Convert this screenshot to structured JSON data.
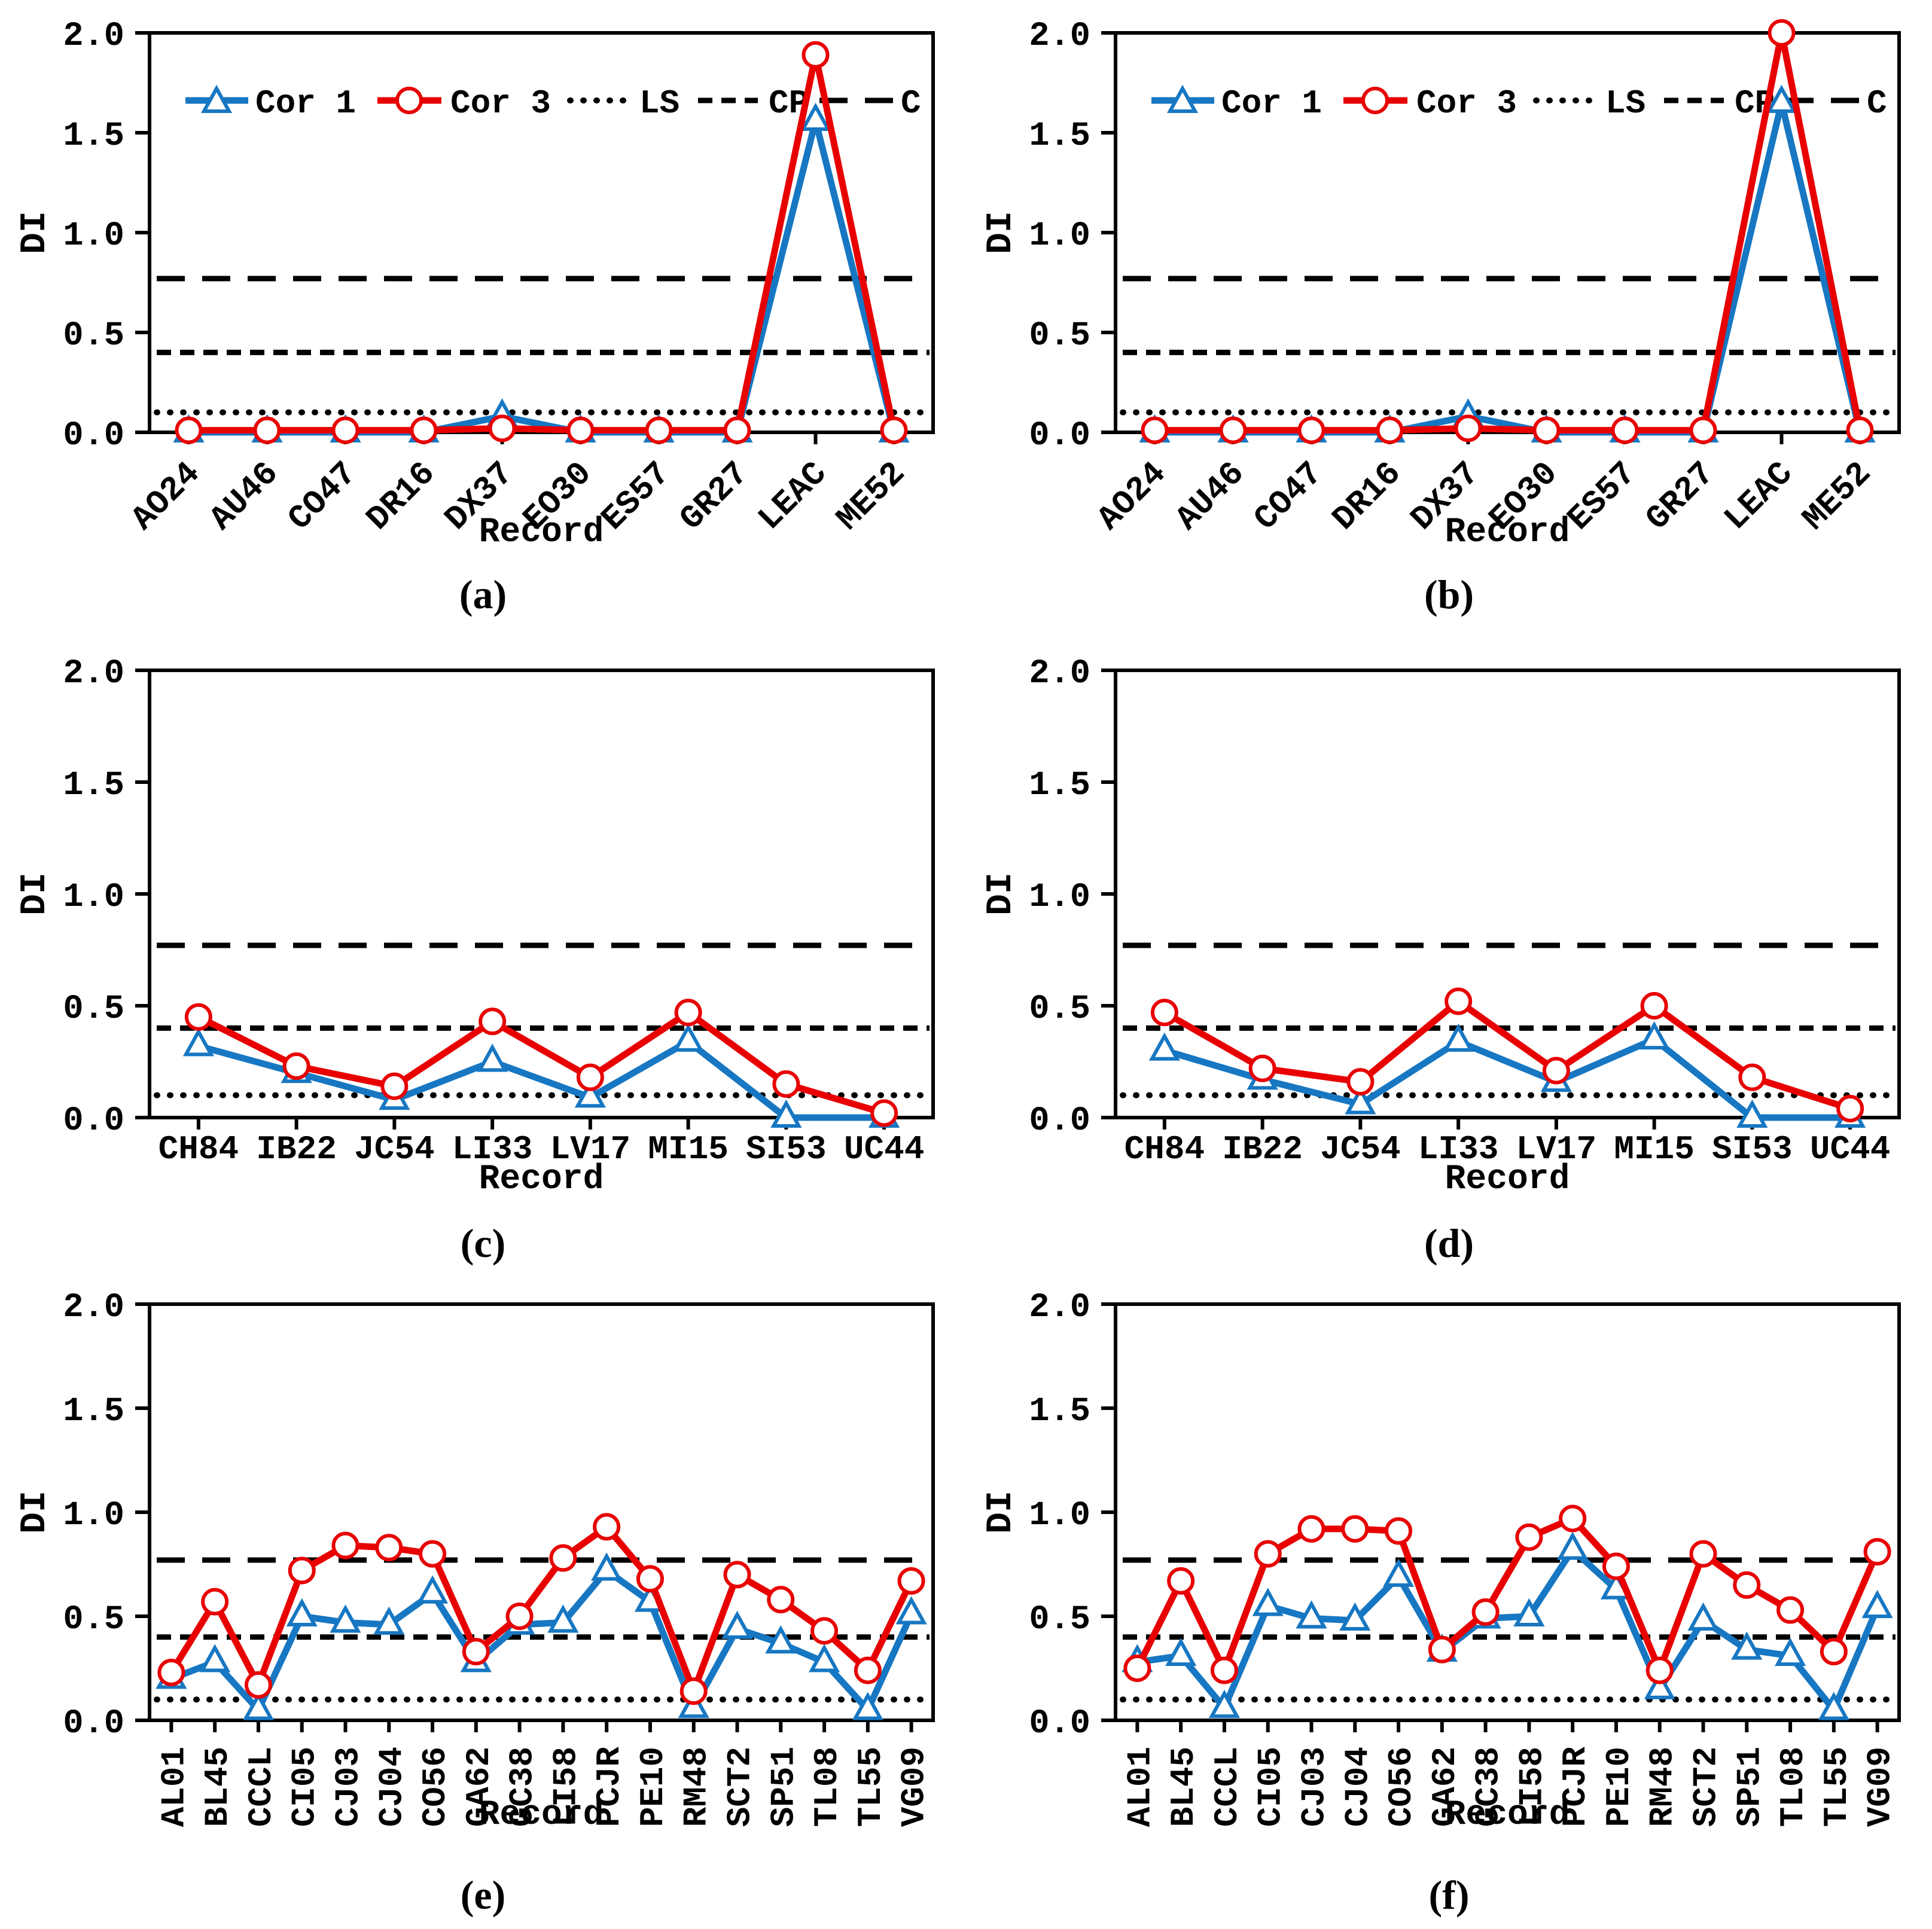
{
  "figure": {
    "ylabel": "DI",
    "xlabel": "Record",
    "background_color": "#ffffff",
    "axis_color": "#000000",
    "cor1_color": "#1777C2",
    "cor3_color": "#E80000",
    "ref_color": "#000000",
    "legend": {
      "cor1": "Cor 1",
      "cor3": "Cor 3",
      "ls": "LS",
      "cp": "CP",
      "c": "C"
    },
    "yticks": [
      "0.0",
      "0.5",
      "1.0",
      "1.5",
      "2.0"
    ],
    "ylim": [
      0,
      2
    ],
    "ref_lines": [
      {
        "name": "LS",
        "value": 0.1,
        "style": "dotted"
      },
      {
        "name": "CP",
        "value": 0.4,
        "style": "dashed"
      },
      {
        "name": "C",
        "value": 0.77,
        "style": "longdash"
      }
    ]
  },
  "chart_data": [
    {
      "id": "a",
      "caption": "(a)",
      "type": "line",
      "legend": true,
      "xtick_rotation": 45,
      "xlabel": "Record",
      "ylabel": "DI",
      "ylim": [
        0,
        2
      ],
      "grid": false,
      "categories": [
        "AO24",
        "AU46",
        "CO47",
        "DR16",
        "DX37",
        "EO30",
        "ES57",
        "GR27",
        "LEAC",
        "ME52"
      ],
      "series": [
        {
          "name": "Cor 1",
          "marker": "triangle",
          "values": [
            0.0,
            0.0,
            0.0,
            0.0,
            0.08,
            0.0,
            0.0,
            0.0,
            1.56,
            0.0
          ]
        },
        {
          "name": "Cor 3",
          "marker": "circle",
          "values": [
            0.01,
            0.01,
            0.01,
            0.01,
            0.02,
            0.01,
            0.01,
            0.01,
            1.89,
            0.01
          ]
        }
      ]
    },
    {
      "id": "b",
      "caption": "(b)",
      "type": "line",
      "legend": true,
      "xtick_rotation": 45,
      "xlabel": "Record",
      "ylabel": "DI",
      "ylim": [
        0,
        2
      ],
      "grid": false,
      "categories": [
        "AO24",
        "AU46",
        "CO47",
        "DR16",
        "DX37",
        "EO30",
        "ES57",
        "GR27",
        "LEAC",
        "ME52"
      ],
      "series": [
        {
          "name": "Cor 1",
          "marker": "triangle",
          "values": [
            0.0,
            0.0,
            0.0,
            0.0,
            0.08,
            0.0,
            0.0,
            0.0,
            1.65,
            0.0
          ]
        },
        {
          "name": "Cor 3",
          "marker": "circle",
          "values": [
            0.01,
            0.01,
            0.01,
            0.01,
            0.02,
            0.01,
            0.01,
            0.01,
            2.0,
            0.01
          ]
        }
      ]
    },
    {
      "id": "c",
      "caption": "(c)",
      "type": "line",
      "legend": false,
      "xtick_rotation": 0,
      "xlabel": "Record",
      "ylabel": "DI",
      "ylim": [
        0,
        2
      ],
      "grid": false,
      "categories": [
        "CH84",
        "IB22",
        "JC54",
        "LI33",
        "LV17",
        "MI15",
        "SI53",
        "UC44"
      ],
      "series": [
        {
          "name": "Cor 1",
          "marker": "triangle",
          "values": [
            0.32,
            0.2,
            0.08,
            0.25,
            0.09,
            0.34,
            0.0,
            0.0
          ]
        },
        {
          "name": "Cor 3",
          "marker": "circle",
          "values": [
            0.45,
            0.23,
            0.14,
            0.43,
            0.18,
            0.47,
            0.15,
            0.02
          ]
        }
      ]
    },
    {
      "id": "d",
      "caption": "(d)",
      "type": "line",
      "legend": false,
      "xtick_rotation": 0,
      "xlabel": "Record",
      "ylabel": "DI",
      "ylim": [
        0,
        2
      ],
      "grid": false,
      "categories": [
        "CH84",
        "IB22",
        "JC54",
        "LI33",
        "LV17",
        "MI15",
        "SI53",
        "UC44"
      ],
      "series": [
        {
          "name": "Cor 1",
          "marker": "triangle",
          "values": [
            0.3,
            0.17,
            0.06,
            0.34,
            0.16,
            0.35,
            0.0,
            0.0
          ]
        },
        {
          "name": "Cor 3",
          "marker": "circle",
          "values": [
            0.47,
            0.22,
            0.16,
            0.52,
            0.21,
            0.5,
            0.18,
            0.04
          ]
        }
      ]
    },
    {
      "id": "e",
      "caption": "(e)",
      "type": "line",
      "legend": false,
      "xtick_rotation": 90,
      "xlabel": "Record",
      "ylabel": "DI",
      "ylim": [
        0,
        2
      ],
      "grid": false,
      "categories": [
        "AL01",
        "BL45",
        "CCCL",
        "CI05",
        "CJ03",
        "CJ04",
        "CO56",
        "GA62",
        "GC38",
        "LI58",
        "PCJR",
        "PE10",
        "RM48",
        "SCT2",
        "SP51",
        "TL08",
        "TL55",
        "VG09"
      ],
      "series": [
        {
          "name": "Cor 1",
          "marker": "triangle",
          "values": [
            0.2,
            0.28,
            0.05,
            0.5,
            0.47,
            0.46,
            0.61,
            0.28,
            0.46,
            0.47,
            0.72,
            0.57,
            0.06,
            0.44,
            0.37,
            0.28,
            0.05,
            0.51
          ]
        },
        {
          "name": "Cor 3",
          "marker": "circle",
          "values": [
            0.23,
            0.57,
            0.17,
            0.72,
            0.84,
            0.83,
            0.8,
            0.33,
            0.5,
            0.78,
            0.93,
            0.68,
            0.14,
            0.7,
            0.58,
            0.43,
            0.24,
            0.67
          ]
        }
      ]
    },
    {
      "id": "f",
      "caption": "(f)",
      "type": "line",
      "legend": false,
      "xtick_rotation": 90,
      "xlabel": "Record",
      "ylabel": "DI",
      "ylim": [
        0,
        2
      ],
      "grid": false,
      "categories": [
        "AL01",
        "BL45",
        "CCCL",
        "CI05",
        "CJ03",
        "CJ04",
        "CO56",
        "GA62",
        "GC38",
        "LI58",
        "PCJR",
        "PE10",
        "RM48",
        "SCT2",
        "SP51",
        "TL08",
        "TL55",
        "VG09"
      ],
      "series": [
        {
          "name": "Cor 1",
          "marker": "triangle",
          "values": [
            0.28,
            0.31,
            0.06,
            0.55,
            0.49,
            0.48,
            0.69,
            0.33,
            0.49,
            0.5,
            0.82,
            0.63,
            0.15,
            0.48,
            0.34,
            0.31,
            0.05,
            0.54
          ]
        },
        {
          "name": "Cor 3",
          "marker": "circle",
          "values": [
            0.25,
            0.67,
            0.24,
            0.8,
            0.92,
            0.92,
            0.91,
            0.34,
            0.52,
            0.88,
            0.97,
            0.74,
            0.24,
            0.8,
            0.65,
            0.53,
            0.33,
            0.81
          ]
        }
      ]
    }
  ]
}
